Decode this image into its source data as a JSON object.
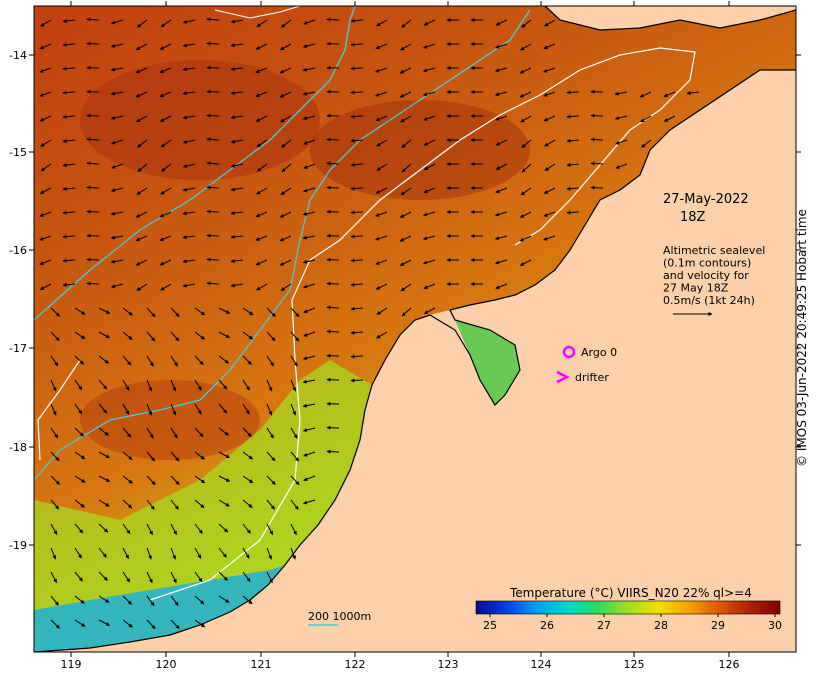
{
  "map": {
    "x_ticks": [
      "119",
      "120",
      "121",
      "122",
      "123",
      "124",
      "125",
      "126"
    ],
    "y_ticks": [
      "-14",
      "-15",
      "-16",
      "-17",
      "-18",
      "-19"
    ],
    "colors": {
      "land": "#fcd0a8",
      "coastline": "#000000",
      "contour_white": "#ffffff",
      "contour_cyan": "#4ec8d0",
      "marker": "#ff00ff"
    }
  },
  "annotations": {
    "date_line1": "27-May-2022",
    "date_line2": "18Z",
    "info_lines": [
      "Altimetric sealevel",
      "(0.1m contours)",
      "and velocity for",
      "27 May 18Z",
      "0.5m/s (1kt 24h)"
    ],
    "argo_label": "Argo 0",
    "drifter_label": "drifter",
    "depth_label": "200  1000m"
  },
  "colorbar": {
    "title": "Temperature (°C) VIIRS_N20 22% ql>=4",
    "ticks": [
      "25",
      "26",
      "27",
      "28",
      "29",
      "30"
    ],
    "stops": [
      "#0a0a8c",
      "#0040e0",
      "#00a0f0",
      "#00d8d0",
      "#30d860",
      "#a0e020",
      "#f0e000",
      "#f8a000",
      "#e05800",
      "#b02000",
      "#800000"
    ]
  },
  "credit": "© IMOS 03-Jun-2022 20:49:25 Hobart time"
}
